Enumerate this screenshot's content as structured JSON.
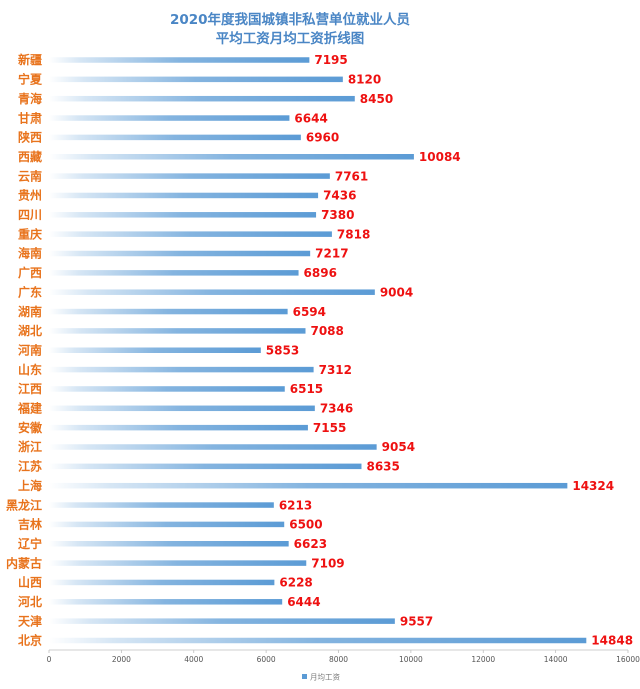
{
  "chart_data": {
    "type": "bar",
    "orientation": "horizontal",
    "title_lines": [
      "2020年度我国城镇非私营单位就业人员",
      "平均工资月均工资折线图"
    ],
    "categories": [
      "新疆",
      "宁夏",
      "青海",
      "甘肃",
      "陕西",
      "西藏",
      "云南",
      "贵州",
      "四川",
      "重庆",
      "海南",
      "广西",
      "广东",
      "湖南",
      "湖北",
      "河南",
      "山东",
      "江西",
      "福建",
      "安徽",
      "浙江",
      "江苏",
      "上海",
      "黑龙江",
      "吉林",
      "辽宁",
      "内蒙古",
      "山西",
      "河北",
      "天津",
      "北京"
    ],
    "series": [
      {
        "name": "月均工资",
        "values": [
          7195,
          8120,
          8450,
          6644,
          6960,
          10084,
          7761,
          7436,
          7380,
          7818,
          7217,
          6896,
          9004,
          6594,
          7088,
          5853,
          7312,
          6515,
          7346,
          7155,
          9054,
          8635,
          14324,
          6213,
          6500,
          6623,
          7109,
          6228,
          6444,
          9557,
          14848
        ]
      }
    ],
    "x_ticks": [
      "0",
      "2000",
      "4000",
      "6000",
      "8000",
      "10000",
      "12000",
      "14000",
      "16000"
    ],
    "xlim": [
      0,
      16000
    ],
    "grid": false,
    "legend_position": "bottom",
    "bar_color": "#5b9bd5",
    "category_label_color": "#e8731c",
    "value_label_color": "#ee1111",
    "title_color": "#4a86c5"
  }
}
